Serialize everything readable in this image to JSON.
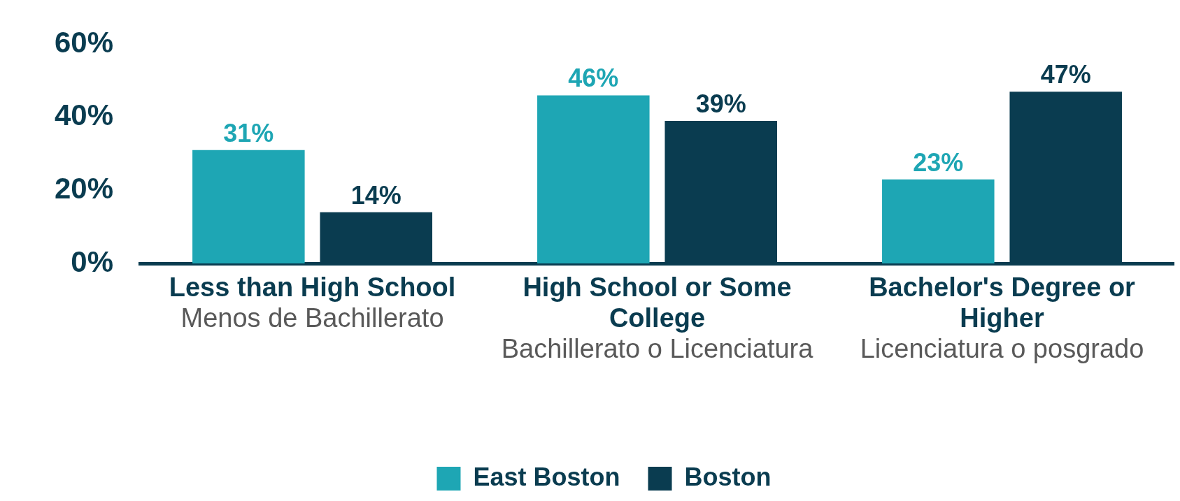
{
  "chart_data": {
    "type": "bar",
    "categories": [
      "Less than High School\nMenos de Bachillerato",
      "High School or Some College\nBachillerato o Licenciatura",
      "Bachelor's Degree or Higher\nLicenciatura o posgrado"
    ],
    "series": [
      {
        "name": "East Boston",
        "color": "#1ea6b4",
        "values": [
          31,
          46,
          23
        ],
        "value_labels": [
          "31%",
          "46%",
          "23%"
        ]
      },
      {
        "name": "Boston",
        "color": "#0a3c50",
        "values": [
          14,
          39,
          47
        ],
        "value_labels": [
          "14%",
          "39%",
          "47%"
        ]
      }
    ],
    "ylim": [
      0,
      60
    ],
    "yticks": [
      {
        "value": 0,
        "label": "0%"
      },
      {
        "value": 20,
        "label": "20%"
      },
      {
        "value": 40,
        "label": "40%"
      },
      {
        "value": 60,
        "label": "60%"
      }
    ],
    "grid": false,
    "legend": "bottom"
  }
}
